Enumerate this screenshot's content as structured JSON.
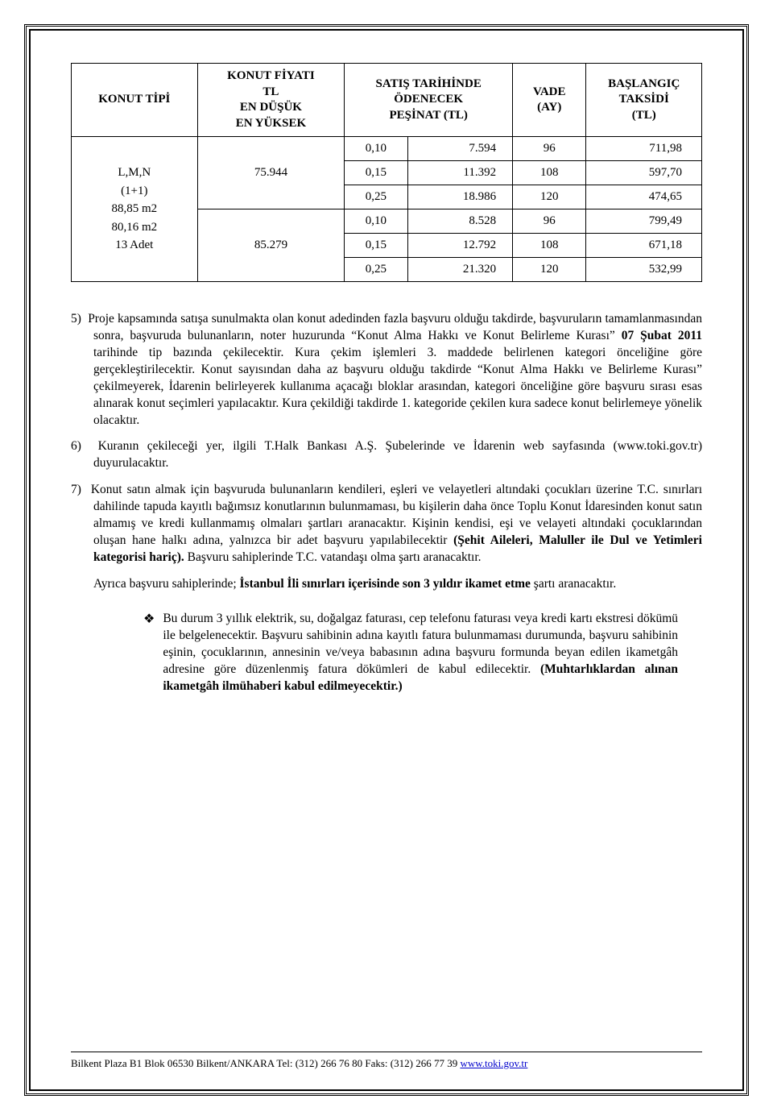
{
  "table": {
    "headers": {
      "konut_tipi": "KONUT TİPİ",
      "fiyat": "KONUT FİYATI\nTL\nEN DÜŞÜK\nEN YÜKSEK",
      "pesinat": "SATIŞ TARİHİNDE\nÖDENECEK\nPEŞİNAT (TL)",
      "vade": "VADE\n(AY)",
      "taksit": "BAŞLANGIÇ\nTAKSİDİ\n(TL)"
    },
    "konut_tipi_lines": [
      "L,M,N",
      "(1+1)",
      "88,85 m2",
      "80,16 m2",
      "13 Adet"
    ],
    "fiyat_values": [
      "75.944",
      "85.279"
    ],
    "rows": [
      {
        "pct": "0,10",
        "pesinat": "7.594",
        "vade": "96",
        "taksit": "711,98"
      },
      {
        "pct": "0,15",
        "pesinat": "11.392",
        "vade": "108",
        "taksit": "597,70"
      },
      {
        "pct": "0,25",
        "pesinat": "18.986",
        "vade": "120",
        "taksit": "474,65"
      },
      {
        "pct": "0,10",
        "pesinat": "8.528",
        "vade": "96",
        "taksit": "799,49"
      },
      {
        "pct": "0,15",
        "pesinat": "12.792",
        "vade": "108",
        "taksit": "671,18"
      },
      {
        "pct": "0,25",
        "pesinat": "21.320",
        "vade": "120",
        "taksit": "532,99"
      }
    ]
  },
  "paragraphs": {
    "p5_prefix": "5)",
    "p5": "Proje kapsamında satışa sunulmakta olan konut adedinden fazla başvuru olduğu takdirde, başvuruların tamamlanmasından sonra, başvuruda bulunanların, noter huzurunda  “Konut Alma Hakkı ve Konut Belirleme Kurası” ",
    "p5_bold1": "07 Şubat 2011",
    "p5_after_bold1": " tarihinde tip bazında çekilecektir. Kura çekim işlemleri 3. maddede belirlenen kategori önceliğine göre gerçekleştirilecektir. Konut sayısından daha az başvuru olduğu takdirde “Konut Alma Hakkı ve Belirleme Kurası” çekilmeyerek, İdarenin belirleyerek kullanıma açacağı bloklar arasından, kategori önceliğine göre başvuru sırası esas alınarak konut seçimleri yapılacaktır.  Kura çekildiği takdirde 1. kategoride çekilen kura sadece konut belirlemeye yönelik olacaktır.",
    "p6_prefix": "6)",
    "p6": "Kuranın çekileceği yer, ilgili T.Halk Bankası A.Ş. Şubelerinde ve İdarenin web sayfasında (www.toki.gov.tr) duyurulacaktır.",
    "p7_prefix": "7)",
    "p7_a": "Konut satın almak için başvuruda bulunanların kendileri, eşleri ve velayetleri altındaki çocukları üzerine T.C. sınırları dahilinde tapuda kayıtlı bağımsız konutlarının bulunmaması, bu kişilerin daha önce Toplu Konut İdaresinden konut satın almamış ve kredi kullanmamış olmaları şartları aranacaktır. Kişinin kendisi, eşi ve velayeti altındaki çocuklarından oluşan hane halkı adına, yalnızca bir adet başvuru yapılabilecektir ",
    "p7_bold1": "(Şehit Aileleri, Maluller ile Dul ve Yetimleri kategorisi hariç).",
    "p7_b": " Başvuru sahiplerinde T.C. vatandaşı olma şartı aranacaktır.",
    "p_ayrica_a": "Ayrıca başvuru sahiplerinde; ",
    "p_ayrica_bold": "İstanbul İli sınırları içerisinde son 3 yıldır ikamet etme",
    "p_ayrica_b": " şartı aranacaktır.",
    "bullet_a": "Bu durum 3 yıllık elektrik, su, doğalgaz faturası, cep telefonu faturası veya kredi kartı ekstresi dökümü ile belgelenecektir. Başvuru sahibinin adına kayıtlı fatura bulunmaması durumunda, başvuru sahibinin eşinin, çocuklarının, annesinin ve/veya babasının adına başvuru formunda beyan edilen ikametgâh adresine göre düzenlenmiş fatura dökümleri de kabul edilecektir. ",
    "bullet_bold": "(Muhtarlıklardan alınan ikametgâh ilmühaberi kabul edilmeyecektir.)"
  },
  "footer": {
    "text": "Bilkent Plaza B1 Blok 06530 Bilkent/ANKARA  Tel: (312) 266 76 80 Faks: (312) 266 77 39 ",
    "link": "www.toki.gov.tr"
  }
}
